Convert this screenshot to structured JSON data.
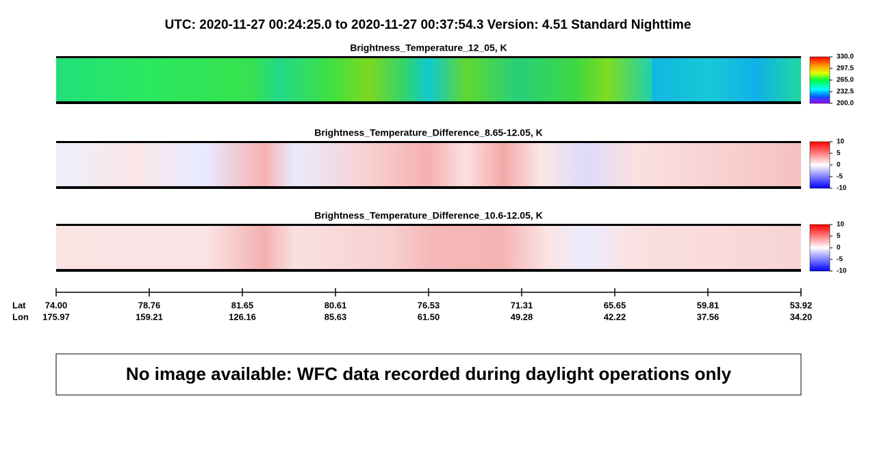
{
  "header": {
    "title": "UTC:  2020-11-27   00:24:25.0  to  2020-11-27   00:37:54.3    Version: 4.51  Standard Nighttime"
  },
  "panels": [
    {
      "title": "Brightness_Temperature_12_05, K",
      "colorbar": [
        "330.0",
        "297.5",
        "265.0",
        "232.5",
        "200.0"
      ]
    },
    {
      "title": "Brightness_Temperature_Difference_8.65-12.05, K",
      "colorbar": [
        "10",
        "5",
        "0",
        "-5",
        "-10"
      ]
    },
    {
      "title": "Brightness_Temperature_Difference_10.6-12.05, K",
      "colorbar": [
        "10",
        "5",
        "0",
        "-5",
        "-10"
      ]
    }
  ],
  "axis": {
    "lat_label": "Lat",
    "lon_label": "Lon",
    "lat": [
      "74.00",
      "78.76",
      "81.65",
      "80.61",
      "76.53",
      "71.31",
      "65.65",
      "59.81",
      "53.92"
    ],
    "lon": [
      "175.97",
      "159.21",
      "126.16",
      "85.63",
      "61.50",
      "49.28",
      "42.22",
      "37.56",
      "34.20"
    ]
  },
  "message": "No image available: WFC data recorded during daylight operations only"
}
